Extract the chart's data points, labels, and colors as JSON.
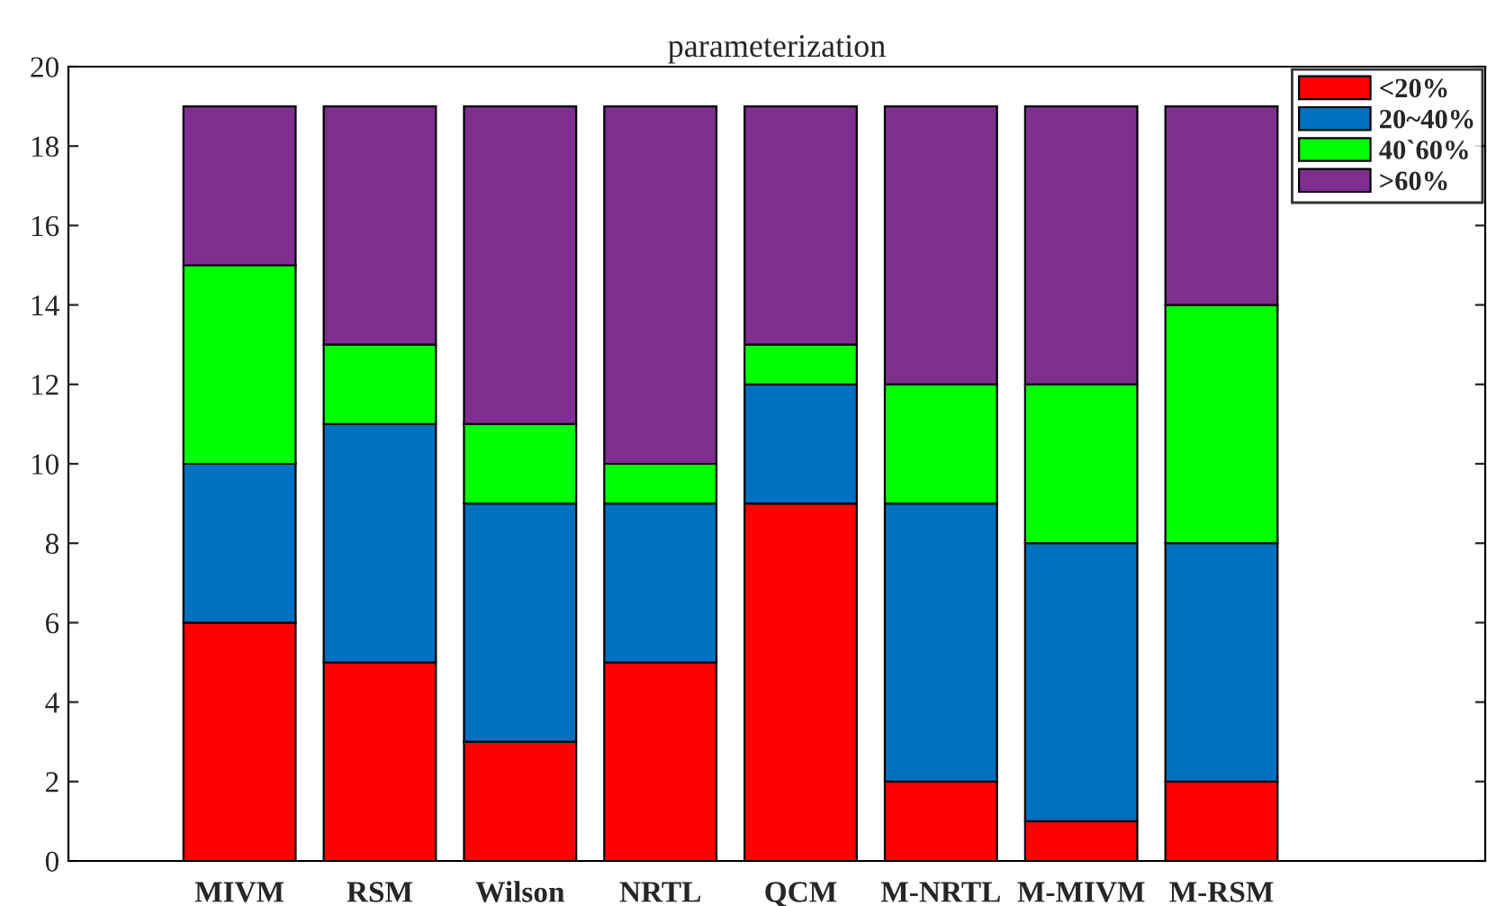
{
  "chart_data": {
    "type": "bar",
    "title": "parameterization",
    "stacked": true,
    "categories": [
      "MIVM",
      "RSM",
      "Wilson",
      "NRTL",
      "QCM",
      "M-NRTL",
      "M-MIVM",
      "M-RSM"
    ],
    "series": [
      {
        "name": "<20%",
        "color": "#ff0000",
        "values": [
          6,
          5,
          3,
          5,
          9,
          2,
          1,
          2
        ]
      },
      {
        "name": "20~40%",
        "color": "#0070c0",
        "values": [
          4,
          6,
          6,
          4,
          3,
          7,
          7,
          6
        ]
      },
      {
        "name": "40`60%",
        "color": "#00ff00",
        "values": [
          5,
          2,
          2,
          1,
          1,
          3,
          4,
          6
        ]
      },
      {
        "name": ">60%",
        "color": "#7f2f8f",
        "values": [
          4,
          6,
          8,
          9,
          6,
          7,
          7,
          5
        ]
      }
    ],
    "ylim": [
      0,
      20
    ],
    "yticks": [
      0,
      2,
      4,
      6,
      8,
      10,
      12,
      14,
      16,
      18,
      20
    ],
    "legend": "top right",
    "grid": false
  }
}
